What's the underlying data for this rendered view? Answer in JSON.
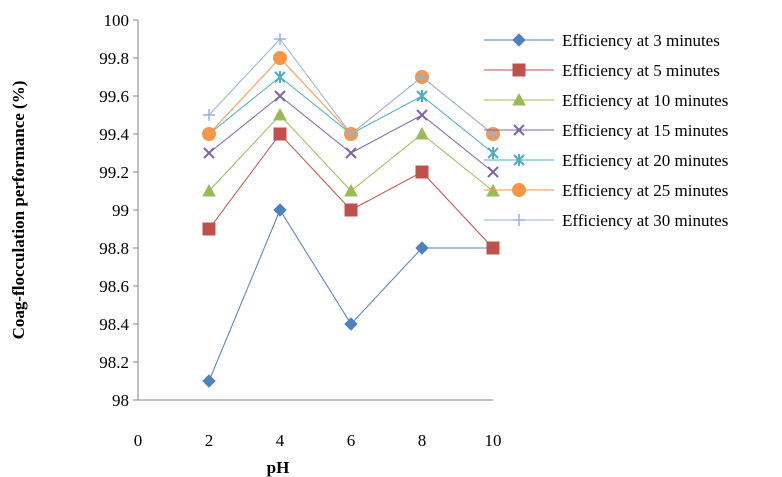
{
  "chart_data": {
    "type": "line",
    "xlabel": "pH",
    "ylabel": "Coag-flocculation performance (%)",
    "xlim": [
      0,
      10
    ],
    "ylim": [
      98,
      100
    ],
    "xticks": [
      0,
      2,
      4,
      6,
      8,
      10
    ],
    "yticks": [
      98,
      98.2,
      98.4,
      98.6,
      98.8,
      99,
      99.2,
      99.4,
      99.6,
      99.8,
      100
    ],
    "xtick_labels": [
      "0",
      "2",
      "4",
      "6",
      "8",
      "10"
    ],
    "ytick_labels": [
      "98",
      "98.2",
      "98.4",
      "98.6",
      "98.8",
      "99",
      "99.2",
      "99.4",
      "99.6",
      "99.8",
      "100"
    ],
    "x": [
      2,
      4,
      6,
      8,
      10
    ],
    "grid": false,
    "legend_position": "right",
    "series": [
      {
        "name": "Efficiency at 3 minutes",
        "values": [
          98.1,
          99.0,
          98.4,
          98.8,
          98.8
        ],
        "color": "#4F81BD",
        "marker": "diamond"
      },
      {
        "name": "Efficiency at 5 minutes",
        "values": [
          98.9,
          99.4,
          99.0,
          99.2,
          98.8
        ],
        "color": "#C0504D",
        "marker": "square"
      },
      {
        "name": "Efficiency at 10 minutes",
        "values": [
          99.1,
          99.5,
          99.1,
          99.4,
          99.1
        ],
        "color": "#9BBB59",
        "marker": "triangle"
      },
      {
        "name": "Efficiency at 15 minutes",
        "values": [
          99.3,
          99.6,
          99.3,
          99.5,
          99.2
        ],
        "color": "#8064A2",
        "marker": "x"
      },
      {
        "name": "Efficiency at 20 minutes",
        "values": [
          99.4,
          99.7,
          99.4,
          99.6,
          99.3
        ],
        "color": "#4BACC6",
        "marker": "star"
      },
      {
        "name": "Efficiency at 25 minutes",
        "values": [
          99.4,
          99.8,
          99.4,
          99.7,
          99.4
        ],
        "color": "#F79646",
        "marker": "circle"
      },
      {
        "name": "Efficiency at 30 minutes",
        "values": [
          99.5,
          99.9,
          99.4,
          99.7,
          99.4
        ],
        "color": "#95B3D7",
        "marker": "plus"
      }
    ]
  }
}
